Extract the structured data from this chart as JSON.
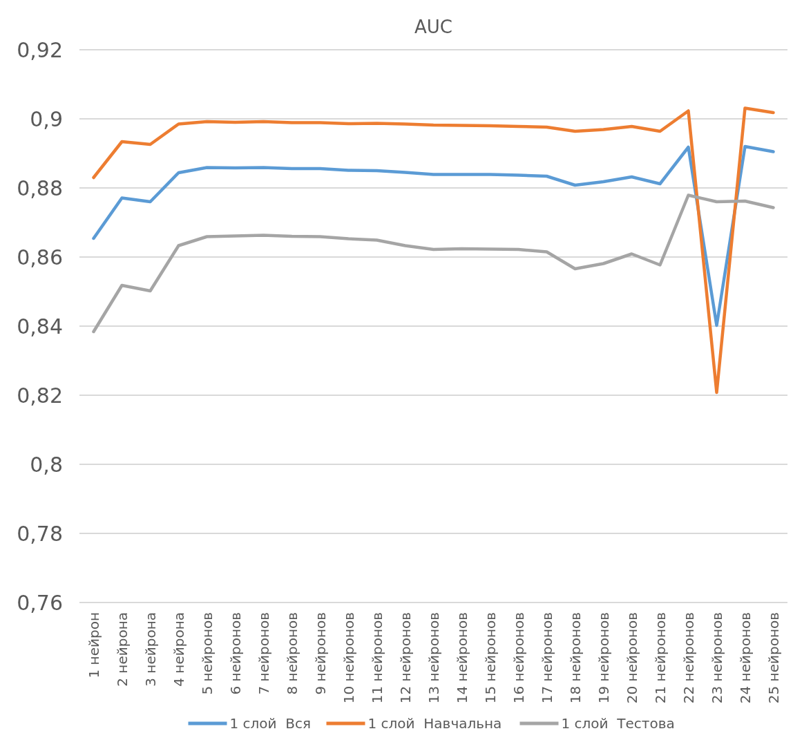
{
  "chart_data": {
    "type": "line",
    "title": "AUC",
    "categories": [
      "1 нейрон",
      "2 нейрона",
      "3 нейрона",
      "4 нейрона",
      "5 нейронов",
      "6 нейронов",
      "7 нейронов",
      "8 нейронов",
      "9 нейронов",
      "10 нейронов",
      "11 нейронов",
      "12 нейронов",
      "13 нейронов",
      "14 нейронов",
      "15 нейронов",
      "16 нейронов",
      "17 нейронов",
      "18 нейронов",
      "19 нейронов",
      "20 нейронов",
      "21 нейронов",
      "22 нейронов",
      "23 нейронов",
      "24 нейронов",
      "25 нейронов"
    ],
    "series": [
      {
        "name": "1 слой  Вся",
        "color": "#5b9bd5",
        "values": [
          0.8654,
          0.8771,
          0.876,
          0.8844,
          0.8859,
          0.8858,
          0.8859,
          0.8856,
          0.8856,
          0.8851,
          0.885,
          0.8845,
          0.8839,
          0.8839,
          0.8839,
          0.8837,
          0.8834,
          0.8808,
          0.8818,
          0.8832,
          0.8812,
          0.8918,
          0.8402,
          0.892,
          0.8905
        ]
      },
      {
        "name": "1 слой  Навчальна",
        "color": "#ed7d31",
        "values": [
          0.883,
          0.8934,
          0.8926,
          0.8985,
          0.8992,
          0.899,
          0.8992,
          0.8989,
          0.8989,
          0.8986,
          0.8987,
          0.8985,
          0.8982,
          0.8981,
          0.898,
          0.8978,
          0.8976,
          0.8964,
          0.8969,
          0.8978,
          0.8964,
          0.9023,
          0.8208,
          0.9031,
          0.9018
        ]
      },
      {
        "name": "1 слой  Тестова",
        "color": "#a5a5a5",
        "values": [
          0.8384,
          0.8518,
          0.8502,
          0.8633,
          0.8659,
          0.8661,
          0.8663,
          0.866,
          0.8659,
          0.8653,
          0.8649,
          0.8633,
          0.8622,
          0.8624,
          0.8623,
          0.8622,
          0.8615,
          0.8566,
          0.8581,
          0.8609,
          0.8577,
          0.8779,
          0.876,
          0.8762,
          0.8743
        ]
      }
    ],
    "ylim": [
      0.76,
      0.92
    ],
    "yticks": [
      {
        "value": 0.76,
        "label": "0,76"
      },
      {
        "value": 0.78,
        "label": "0,78"
      },
      {
        "value": 0.8,
        "label": "0,8"
      },
      {
        "value": 0.82,
        "label": "0,82"
      },
      {
        "value": 0.84,
        "label": "0,84"
      },
      {
        "value": 0.86,
        "label": "0,86"
      },
      {
        "value": 0.88,
        "label": "0,88"
      },
      {
        "value": 0.9,
        "label": "0,9"
      },
      {
        "value": 0.92,
        "label": "0,92"
      }
    ],
    "grid": "y",
    "legend": "bottom",
    "marker": "none",
    "line_style": "solid"
  }
}
